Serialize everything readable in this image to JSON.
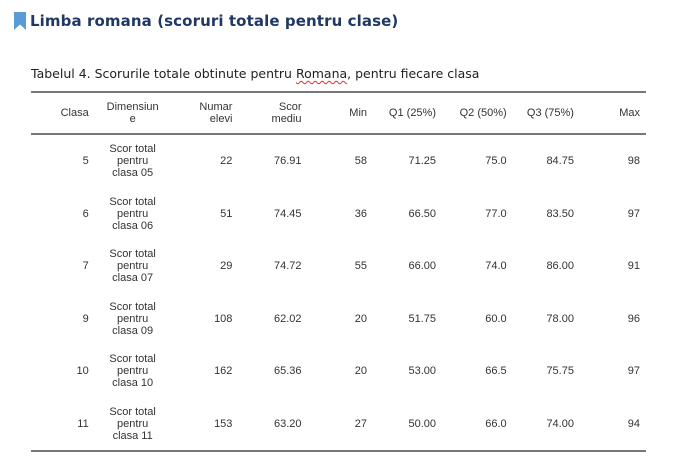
{
  "heading": {
    "title": "Limba romana (scoruri totale pentru clase)"
  },
  "caption": {
    "prefix": "Tabelul 4. Scorurile totale obtinute pentru ",
    "highlight": "Romana",
    "suffix": ", pentru fiecare clasa"
  },
  "table": {
    "headers": {
      "clasa": "Clasa",
      "dimensiune_line1": "Dimensiun",
      "dimensiune_line2": "e",
      "numar_line1": "Numar",
      "numar_line2": "elevi",
      "scor_line1": "Scor",
      "scor_line2": "mediu",
      "min": "Min",
      "q1": "Q1 (25%)",
      "q2": "Q2 (50%)",
      "q3": "Q3 (75%)",
      "max": "Max"
    },
    "rows": [
      {
        "clasa": "5",
        "dim_line1": "Scor total",
        "dim_line2": "pentru",
        "dim_line3": "clasa 05",
        "numar": "22",
        "scor": "76.91",
        "min": "58",
        "q1": "71.25",
        "q2": "75.0",
        "q3": "84.75",
        "max": "98"
      },
      {
        "clasa": "6",
        "dim_line1": "Scor total",
        "dim_line2": "pentru",
        "dim_line3": "clasa 06",
        "numar": "51",
        "scor": "74.45",
        "min": "36",
        "q1": "66.50",
        "q2": "77.0",
        "q3": "83.50",
        "max": "97"
      },
      {
        "clasa": "7",
        "dim_line1": "Scor total",
        "dim_line2": "pentru",
        "dim_line3": "clasa 07",
        "numar": "29",
        "scor": "74.72",
        "min": "55",
        "q1": "66.00",
        "q2": "74.0",
        "q3": "86.00",
        "max": "91"
      },
      {
        "clasa": "9",
        "dim_line1": "Scor total",
        "dim_line2": "pentru",
        "dim_line3": "clasa 09",
        "numar": "108",
        "scor": "62.02",
        "min": "20",
        "q1": "51.75",
        "q2": "60.0",
        "q3": "78.00",
        "max": "96"
      },
      {
        "clasa": "10",
        "dim_line1": "Scor total",
        "dim_line2": "pentru",
        "dim_line3": "clasa 10",
        "numar": "162",
        "scor": "65.36",
        "min": "20",
        "q1": "53.00",
        "q2": "66.5",
        "q3": "75.75",
        "max": "97"
      },
      {
        "clasa": "11",
        "dim_line1": "Scor total",
        "dim_line2": "pentru",
        "dim_line3": "clasa 11",
        "numar": "153",
        "scor": "63.20",
        "min": "27",
        "q1": "50.00",
        "q2": "66.0",
        "q3": "74.00",
        "max": "94"
      }
    ]
  },
  "colors": {
    "heading": "#1f3864",
    "bookmark_icon": "#5b9bd5",
    "spellcheck_underline": "#e0302a",
    "table_rules": "#777777"
  },
  "icons": {
    "heading_marker": "bookmark-icon"
  }
}
